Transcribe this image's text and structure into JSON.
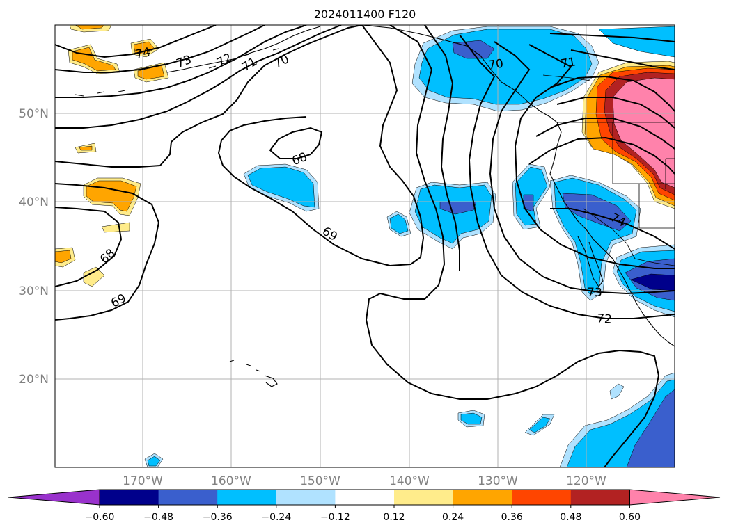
{
  "title": "2024011400 F120",
  "map": {
    "lat_labels": [
      "50°N",
      "40°N",
      "30°N",
      "20°N"
    ],
    "lon_labels": [
      "170°W",
      "160°W",
      "150°W",
      "140°W",
      "130°W",
      "120°W"
    ],
    "contour_labels": [
      {
        "id": "74a",
        "text": "74"
      },
      {
        "id": "73a",
        "text": "73"
      },
      {
        "id": "72a",
        "text": "72"
      },
      {
        "id": "71a",
        "text": "71"
      },
      {
        "id": "70a",
        "text": "70"
      },
      {
        "id": "70b",
        "text": "70"
      },
      {
        "id": "71b",
        "text": "71"
      },
      {
        "id": "68a",
        "text": "68"
      },
      {
        "id": "69a",
        "text": "69"
      },
      {
        "id": "68b",
        "text": "68"
      },
      {
        "id": "69b",
        "text": "69"
      },
      {
        "id": "74b",
        "text": "74"
      },
      {
        "id": "73b",
        "text": "73"
      },
      {
        "id": "72b",
        "text": "72"
      }
    ]
  },
  "colorbar": {
    "colors": [
      "#9932cc",
      "#00008b",
      "#3a5fcd",
      "#00bfff",
      "#b0e2ff",
      "#ffffff",
      "#ffec8b",
      "#ffa500",
      "#ff4500",
      "#b22222",
      "#ff82ab"
    ],
    "ticks": [
      "−0.60",
      "−0.48",
      "−0.36",
      "−0.24",
      "−0.12",
      "0.12",
      "0.24",
      "0.36",
      "0.48",
      "0.60"
    ]
  },
  "palette": {
    "light_blue": "#b0e2ff",
    "blue": "#00bfff",
    "mid_blue": "#3a5fcd",
    "navy": "#00008b",
    "light_yellow": "#ffec8b",
    "orange": "#ffa500",
    "red_orange": "#ff4500",
    "dark_red": "#b22222",
    "pink": "#ff82ab"
  }
}
